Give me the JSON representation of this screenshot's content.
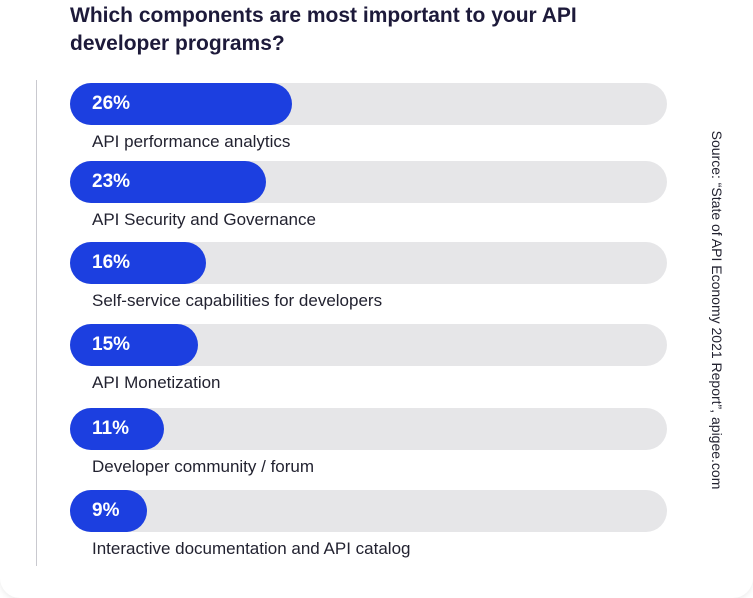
{
  "header": {
    "title": "Which components are most important to your API developer programs?"
  },
  "source": "Source: “State of API Economy 2021 Report”, apigee.com",
  "colors": {
    "bar": "#1c3fe0",
    "track": "#e6e6e8"
  },
  "chart_data": {
    "type": "bar",
    "orientation": "horizontal",
    "title": "Which components are most important to your API developer programs?",
    "categories": [
      "API performance analytics",
      "API Security and Governance",
      "Self-service capabilities for developers",
      "API Monetization",
      "Developer community / forum",
      "Interactive documentation and API catalog"
    ],
    "values": [
      26,
      23,
      16,
      15,
      11,
      9
    ],
    "value_labels": [
      "26%",
      "23%",
      "16%",
      "15%",
      "11%",
      "9%"
    ],
    "xlim": [
      0,
      70
    ],
    "grid": false
  }
}
